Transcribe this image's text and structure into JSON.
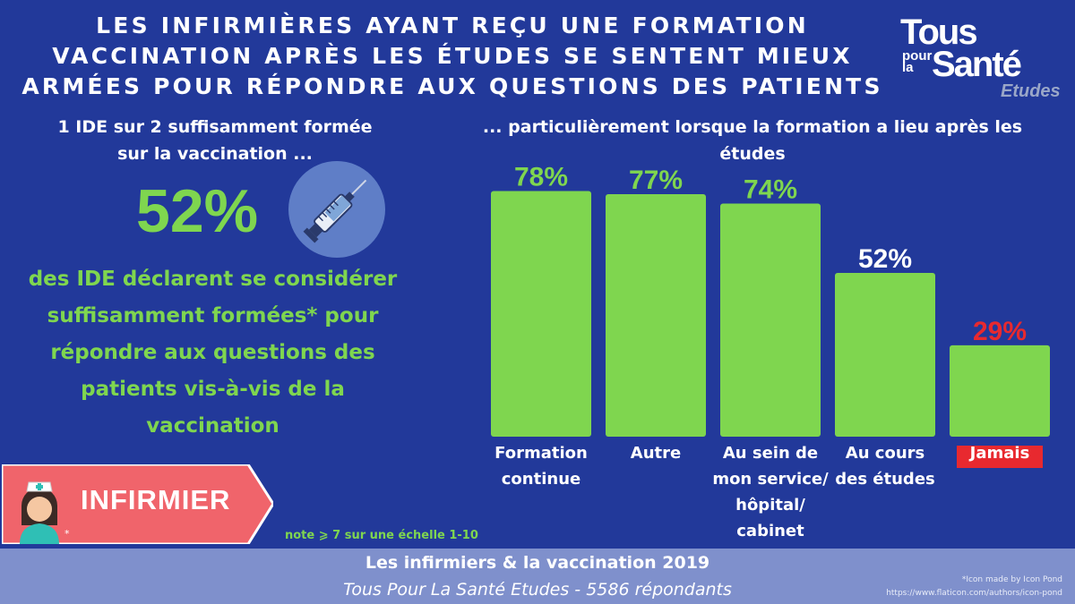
{
  "title": {
    "line1": "LES INFIRMIÈRES AYANT REÇU UNE FORMATION",
    "line2": "VACCINATION APRÈS LES ÉTUDES SE SENTENT MIEUX",
    "line3": "ARMÉES POUR RÉPONDRE AUX QUESTIONS DES PATIENTS"
  },
  "logo": {
    "tous": "Tous",
    "pour": "pour",
    "la": "la",
    "sante": "Santé",
    "etudes": "Etudes"
  },
  "left": {
    "heading_line1": "1 IDE sur 2 suffisamment formée",
    "heading_line2": "sur la vaccination  ...",
    "big_value": "52%",
    "desc_line1": "des IDE déclarent se considérer",
    "desc_line2": "suffisamment formées* pour",
    "desc_line3": "répondre aux questions des",
    "desc_line4": "patients vis-à-vis de la",
    "desc_line5": "vaccination",
    "badge_label": "INFIRMIER",
    "asterisk": "*",
    "note": "note ⩾ 7 sur une échelle 1-10"
  },
  "right": {
    "heading_line1": "... particulièrement lorsque la formation a lieu après les",
    "heading_line2": "études"
  },
  "colors": {
    "background": "#22399a",
    "bar": "#7fd64f",
    "highlight_red": "#e8292f",
    "badge": "#f0646b",
    "footer": "#7f90cc"
  },
  "icons": [
    "syringe-icon",
    "nurse-icon"
  ],
  "chart_data": {
    "type": "bar",
    "title": "",
    "xlabel": "",
    "ylabel": "",
    "ylim": [
      0,
      100
    ],
    "categories": [
      [
        "Formation",
        "continue"
      ],
      [
        "Autre"
      ],
      [
        "Au sein de",
        "mon service/",
        "hôpital/",
        "cabinet"
      ],
      [
        "Au cours",
        "des études"
      ],
      [
        "Jamais"
      ]
    ],
    "values": [
      78,
      77,
      74,
      52,
      29
    ],
    "data_labels": [
      "78%",
      "77%",
      "74%",
      "52%",
      "29%"
    ],
    "label_colors": [
      "#7fd64f",
      "#7fd64f",
      "#7fd64f",
      "#ffffff",
      "#e8292f"
    ],
    "highlight_category_box": {
      "index": 4,
      "color": "#e8292f"
    }
  },
  "footer": {
    "title": "Les infirmiers & la vaccination 2019",
    "subtitle": "Tous Pour La Santé Etudes - 5586 répondants",
    "credit_line1": "*Icon made by Icon Pond",
    "credit_line2": "https://www.flaticon.com/authors/icon-pond"
  }
}
